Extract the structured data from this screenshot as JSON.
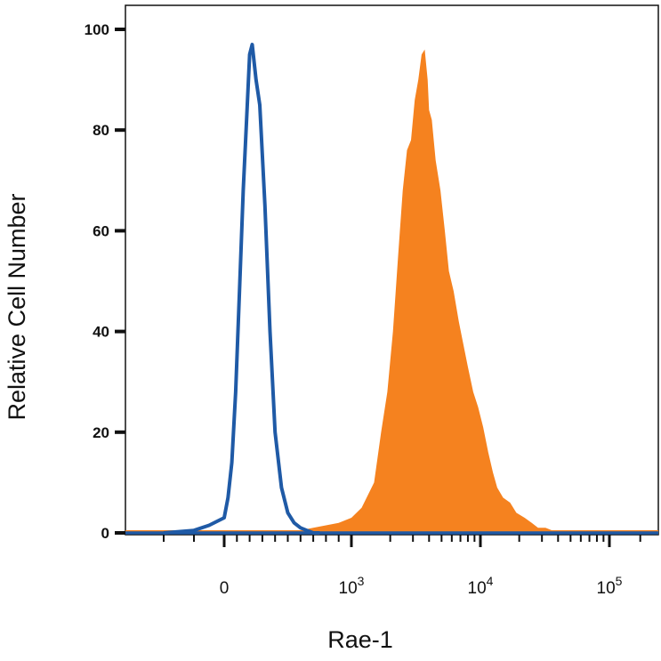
{
  "chart_data": {
    "type": "area",
    "xlabel": "Rae-1",
    "ylabel": "Relative Cell Number",
    "ylim": [
      0,
      100
    ],
    "xscale": "biexponential",
    "y_ticks": [
      "0",
      "20",
      "40",
      "60",
      "80",
      "100"
    ],
    "x_ticks": [
      {
        "value": 0,
        "base": "0",
        "exp": ""
      },
      {
        "value": 1000,
        "base": "10",
        "exp": "3"
      },
      {
        "value": 10000,
        "base": "10",
        "exp": "4"
      },
      {
        "value": 100000,
        "base": "10",
        "exp": "5"
      }
    ],
    "grid": false,
    "legend": "none",
    "series": [
      {
        "style": "filled",
        "color": "#f5821f",
        "x": [
          500,
          700,
          900,
          1000,
          1200,
          1500,
          1700,
          1900,
          2100,
          2300,
          2500,
          2700,
          2900,
          3100,
          3300,
          3500,
          3700,
          3900,
          4000,
          4200,
          4500,
          4900,
          5300,
          5700,
          6200,
          6800,
          7300,
          8000,
          8800,
          9600,
          10500,
          11500,
          12500,
          13500,
          15000,
          17000,
          19000,
          22000,
          25000,
          28000,
          32000,
          36000,
          40000,
          45000,
          50000
        ],
        "y": [
          0,
          1,
          2,
          3,
          5,
          10,
          20,
          28,
          40,
          55,
          68,
          76,
          78,
          86,
          90,
          95,
          96,
          90,
          84,
          82,
          74,
          68,
          60,
          52,
          48,
          42,
          38,
          33,
          28,
          25,
          21,
          16,
          12,
          9,
          7,
          6,
          4,
          3,
          2,
          1,
          1,
          0.5,
          0.5,
          0,
          0
        ]
      },
      {
        "style": "line",
        "color": "#1f5aa6",
        "x": [
          -200,
          -100,
          -50,
          0,
          30,
          60,
          90,
          120,
          150,
          180,
          200,
          220,
          250,
          280,
          320,
          360,
          400,
          450,
          500,
          550,
          600,
          650,
          700,
          750
        ],
        "y": [
          0,
          0.5,
          1.5,
          3,
          7,
          14,
          28,
          48,
          68,
          84,
          95,
          97,
          90,
          85,
          65,
          40,
          20,
          9,
          4,
          2,
          1,
          0.5,
          0,
          0
        ]
      }
    ]
  }
}
